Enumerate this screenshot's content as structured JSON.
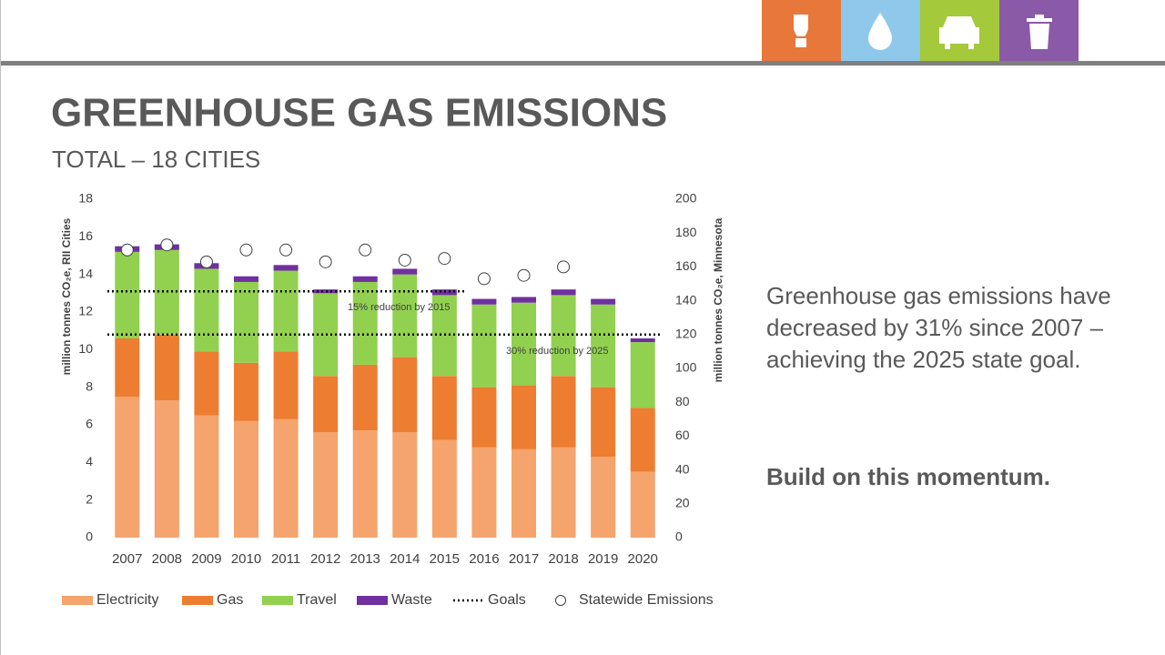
{
  "header": {
    "title": "GREENHOUSE GAS EMISSIONS",
    "subtitle": "TOTAL – 18 CITIES"
  },
  "side_text": {
    "paragraph": "Greenhouse gas emissions have decreased by 31% since 2007 – achieving the 2025 state goal.",
    "emphasis": "Build on this momentum."
  },
  "chart_data": {
    "type": "bar",
    "stacked": true,
    "y_label": "million tonnes CO₂e, RII Cities",
    "y2_label": "million tonnes CO₂e, Minnesota",
    "categories": [
      "2007",
      "2008",
      "2009",
      "2010",
      "2011",
      "2012",
      "2013",
      "2014",
      "2015",
      "2016",
      "2017",
      "2018",
      "2019",
      "2020"
    ],
    "ylim": [
      0,
      18
    ],
    "yticks": [
      0,
      2,
      4,
      6,
      8,
      10,
      12,
      14,
      16,
      18
    ],
    "y2lim": [
      0,
      200
    ],
    "y2ticks": [
      0,
      20,
      40,
      60,
      80,
      100,
      120,
      140,
      160,
      180,
      200
    ],
    "series": [
      {
        "name": "Electricity",
        "color": "#f4a46c",
        "values": [
          7.5,
          7.3,
          6.5,
          6.2,
          6.3,
          5.6,
          5.7,
          5.6,
          5.2,
          4.8,
          4.7,
          4.8,
          4.3,
          3.5
        ]
      },
      {
        "name": "Gas",
        "color": "#ed7d31",
        "values": [
          3.1,
          3.5,
          3.4,
          3.1,
          3.6,
          3.0,
          3.5,
          4.0,
          3.4,
          3.2,
          3.4,
          3.8,
          3.7,
          3.4
        ]
      },
      {
        "name": "Travel",
        "color": "#92d050",
        "values": [
          4.6,
          4.5,
          4.4,
          4.3,
          4.3,
          4.4,
          4.4,
          4.4,
          4.3,
          4.4,
          4.4,
          4.3,
          4.4,
          3.5
        ]
      },
      {
        "name": "Waste",
        "color": "#7030a0",
        "values": [
          0.3,
          0.3,
          0.3,
          0.3,
          0.3,
          0.2,
          0.3,
          0.3,
          0.3,
          0.3,
          0.3,
          0.3,
          0.3,
          0.2
        ]
      }
    ],
    "goals": {
      "name": "Goals",
      "color": "#000000",
      "lines": [
        {
          "label": "15% reduction by 2015",
          "values": [
            13.1,
            13.1,
            13.1,
            13.1,
            13.1,
            13.1,
            13.1,
            13.1,
            13.1,
            null,
            null,
            null,
            null,
            null
          ]
        },
        {
          "label": "30% reduction by 2025",
          "values": [
            10.8,
            10.8,
            10.8,
            10.8,
            10.8,
            10.8,
            10.8,
            10.8,
            10.8,
            10.8,
            10.8,
            10.8,
            10.8,
            10.8
          ]
        }
      ]
    },
    "statewide": {
      "name": "Statewide Emissions",
      "axis": "y2",
      "color": "#ffffff",
      "values": [
        170,
        173,
        163,
        170,
        170,
        163,
        170,
        164,
        165,
        153,
        155,
        160,
        null,
        null
      ]
    }
  }
}
